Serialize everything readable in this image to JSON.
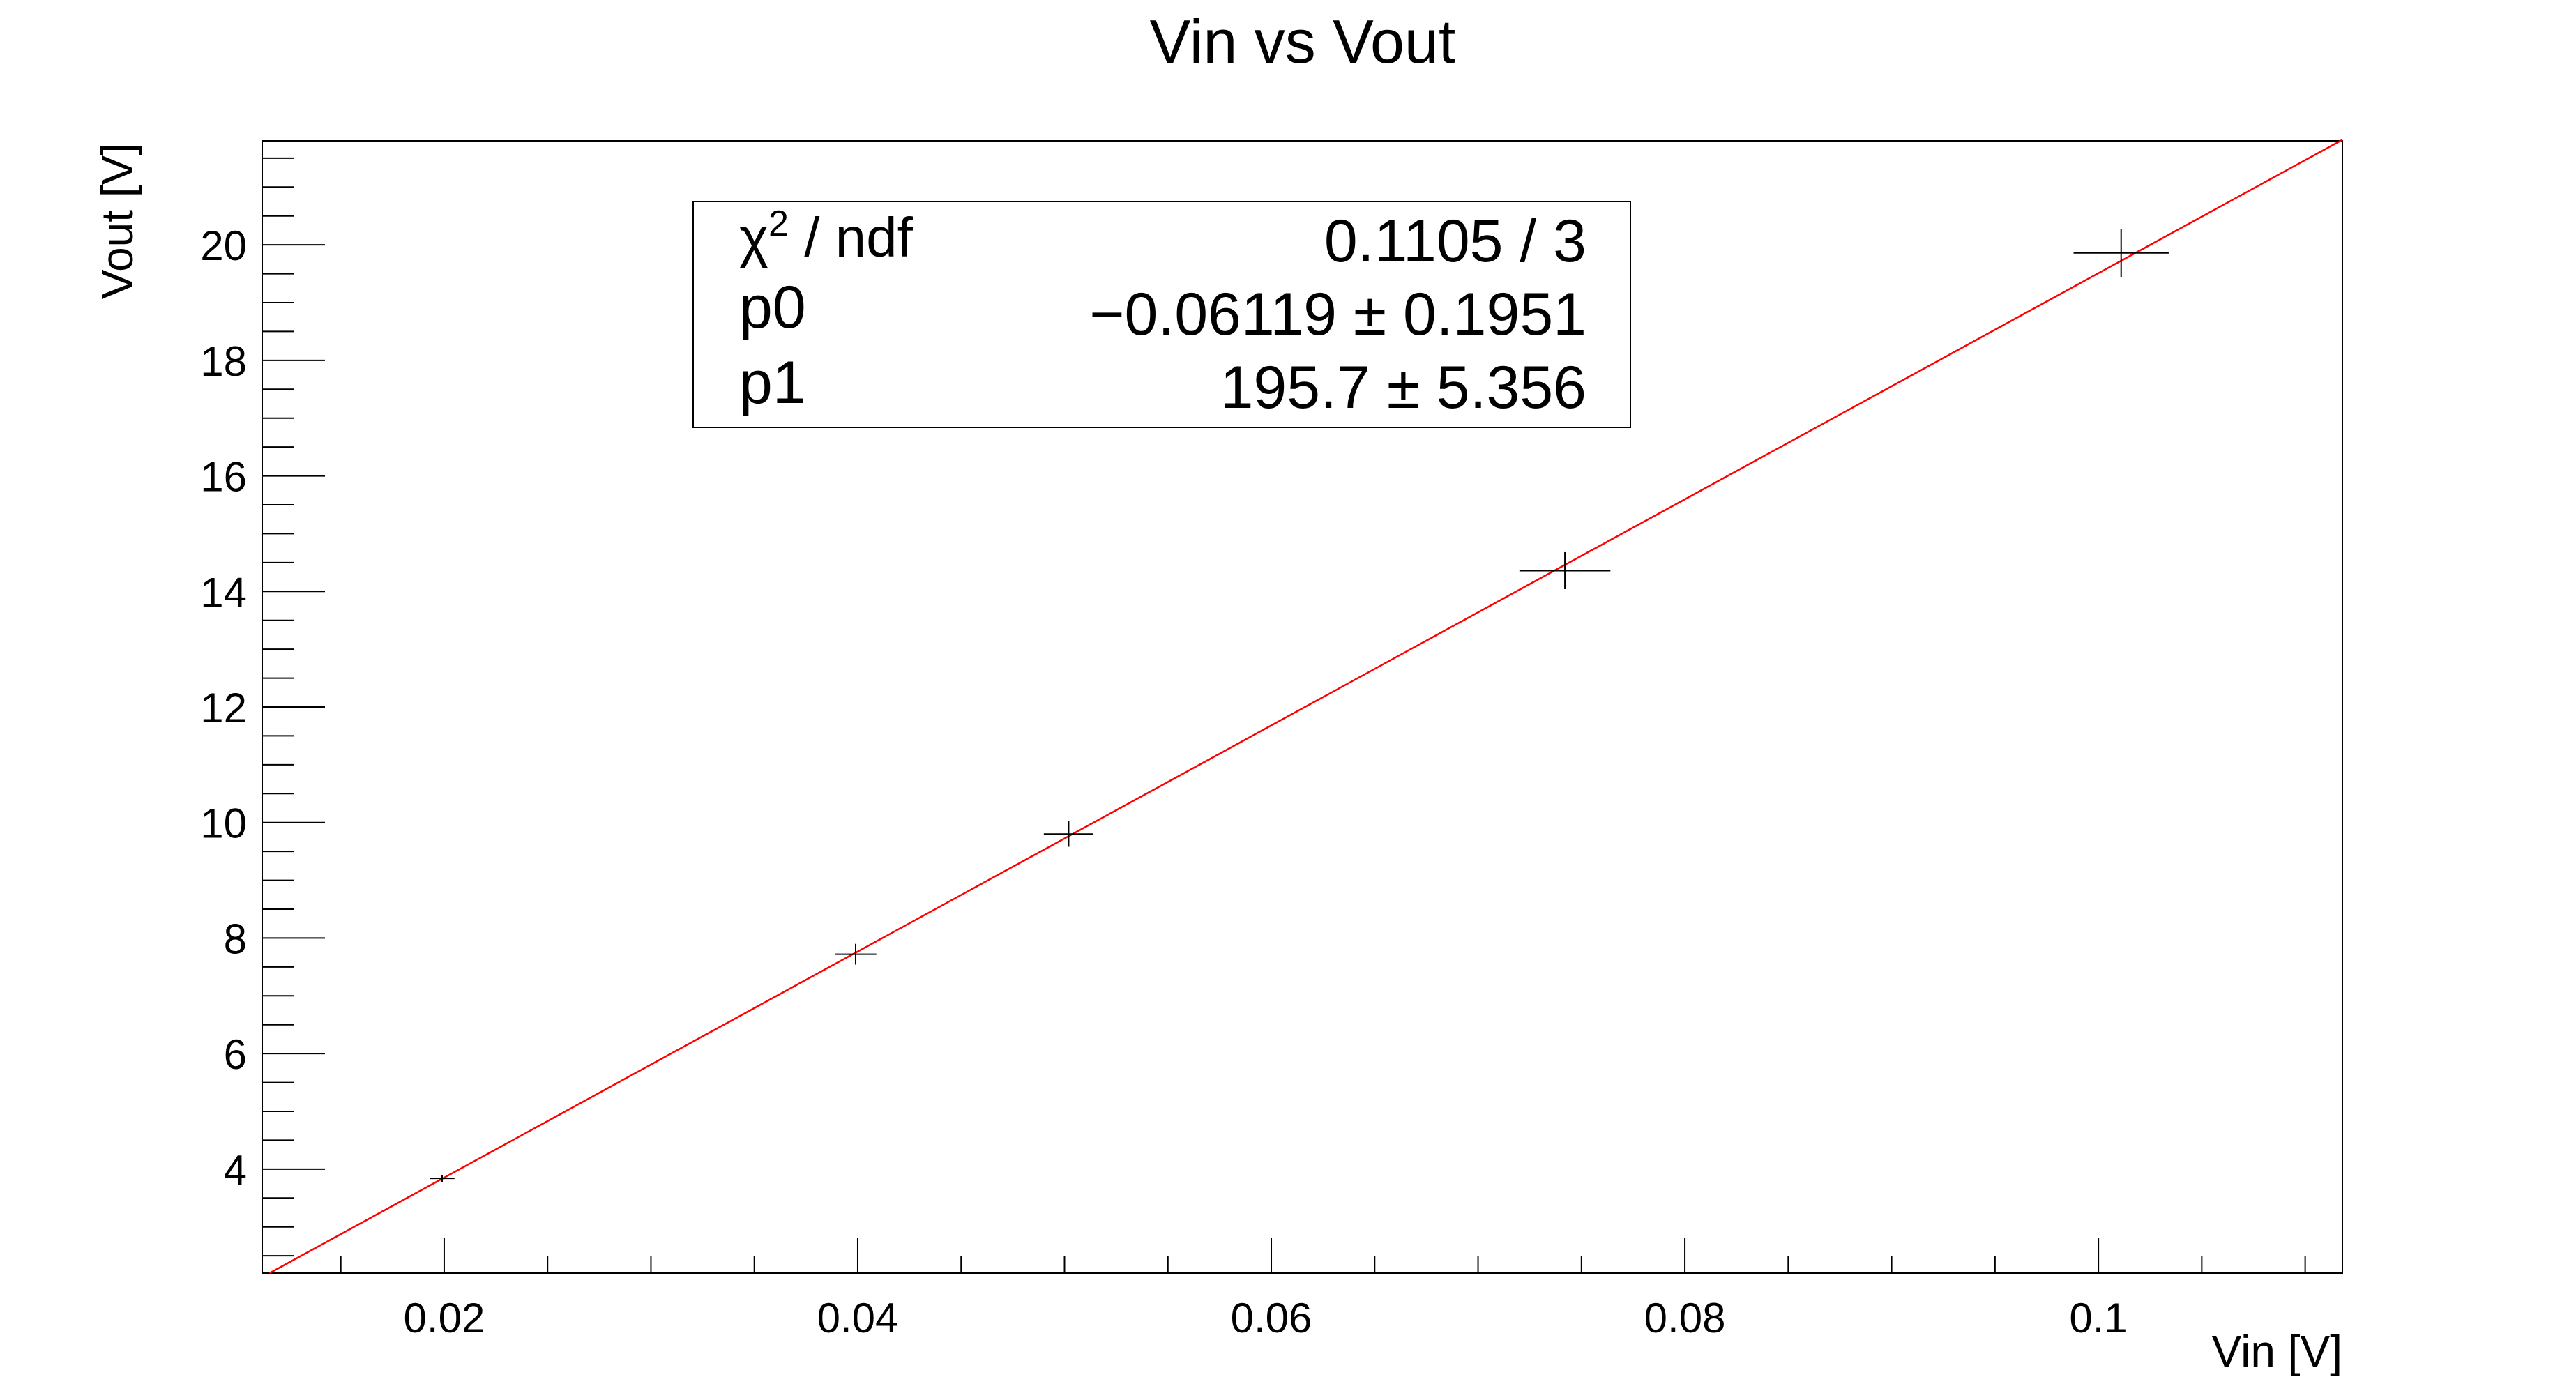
{
  "chart_data": {
    "type": "scatter",
    "title": "Vin vs Vout",
    "xlabel": "Vin [V]",
    "ylabel": "Vout [V]",
    "xlim": [
      0.0112,
      0.1118
    ],
    "ylim": [
      2.2,
      21.8
    ],
    "grid": false,
    "x_ticks": [
      "0.02",
      "0.04",
      "0.06",
      "0.08",
      "0.1"
    ],
    "y_ticks": [
      "4",
      "6",
      "8",
      "10",
      "12",
      "14",
      "16",
      "18",
      "20"
    ],
    "points": [
      {
        "x": 0.0199,
        "y": 3.84,
        "ex": 0.0006,
        "ey": 0.06
      },
      {
        "x": 0.0399,
        "y": 7.72,
        "ex": 0.001,
        "ey": 0.18
      },
      {
        "x": 0.0502,
        "y": 9.8,
        "ex": 0.0012,
        "ey": 0.22
      },
      {
        "x": 0.0742,
        "y": 14.36,
        "ex": 0.0022,
        "ey": 0.32
      },
      {
        "x": 0.1011,
        "y": 19.86,
        "ex": 0.0023,
        "ey": 0.42
      }
    ],
    "fit": {
      "type": "linear",
      "p0": -0.06119,
      "p1": 195.7,
      "color": "#ff0000"
    },
    "stats_box": {
      "rows": [
        {
          "label": "χ",
          "sup": "2",
          "label_rest": " / ndf",
          "value": "0.1105 / 3"
        },
        {
          "label": "p0",
          "value": "−0.06119 ± 0.1951"
        },
        {
          "label": "p1",
          "value": "195.7 ± 5.356"
        }
      ]
    }
  }
}
